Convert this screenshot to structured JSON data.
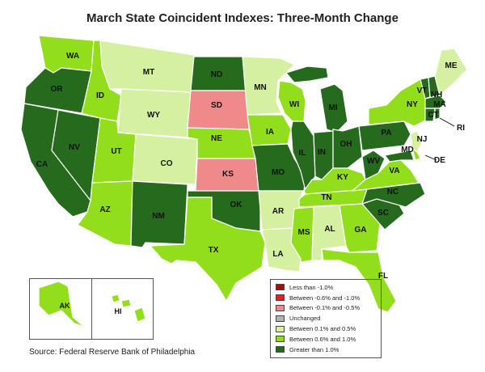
{
  "title": "March State Coincident Indexes: Three-Month Change",
  "source": "Source: Federal Reserve Bank of Philadelphia",
  "colors": {
    "lt_neg1": "#a11010",
    "neg08_neg1": "#ee1c1c",
    "neg01_neg05": "#f08a8a",
    "unchanged": "#b4b4b4",
    "p01_p05": "#d4f0a0",
    "p06_p1": "#92de1c",
    "gt1": "#266b1d"
  },
  "legend": [
    {
      "key": "lt_neg1",
      "label": "Less than -1.0%"
    },
    {
      "key": "neg08_neg1",
      "label": "Between -0.6% and -1.0%"
    },
    {
      "key": "neg01_neg05",
      "label": "Between -0.1% and -0.5%"
    },
    {
      "key": "unchanged",
      "label": "Unchanged"
    },
    {
      "key": "p01_p05",
      "label": "Between 0.1% and 0.5%"
    },
    {
      "key": "p06_p1",
      "label": "Between 0.6% and 1.0%"
    },
    {
      "key": "gt1",
      "label": "Greater than 1.0%"
    }
  ],
  "states": [
    {
      "abbr": "WA",
      "category": "p06_p1"
    },
    {
      "abbr": "OR",
      "category": "gt1"
    },
    {
      "abbr": "CA",
      "category": "gt1"
    },
    {
      "abbr": "NV",
      "category": "gt1"
    },
    {
      "abbr": "ID",
      "category": "p06_p1"
    },
    {
      "abbr": "MT",
      "category": "p01_p05"
    },
    {
      "abbr": "WY",
      "category": "p01_p05"
    },
    {
      "abbr": "UT",
      "category": "p06_p1"
    },
    {
      "abbr": "AZ",
      "category": "p06_p1"
    },
    {
      "abbr": "CO",
      "category": "p01_p05"
    },
    {
      "abbr": "NM",
      "category": "gt1"
    },
    {
      "abbr": "ND",
      "category": "gt1"
    },
    {
      "abbr": "SD",
      "category": "neg01_neg05"
    },
    {
      "abbr": "NE",
      "category": "p06_p1"
    },
    {
      "abbr": "KS",
      "category": "neg01_neg05"
    },
    {
      "abbr": "OK",
      "category": "gt1"
    },
    {
      "abbr": "TX",
      "category": "p06_p1"
    },
    {
      "abbr": "MN",
      "category": "p01_p05"
    },
    {
      "abbr": "IA",
      "category": "p06_p1"
    },
    {
      "abbr": "MO",
      "category": "gt1"
    },
    {
      "abbr": "AR",
      "category": "p01_p05"
    },
    {
      "abbr": "LA",
      "category": "p01_p05"
    },
    {
      "abbr": "WI",
      "category": "p06_p1"
    },
    {
      "abbr": "IL",
      "category": "gt1"
    },
    {
      "abbr": "MI",
      "category": "gt1"
    },
    {
      "abbr": "IN",
      "category": "gt1"
    },
    {
      "abbr": "OH",
      "category": "gt1"
    },
    {
      "abbr": "KY",
      "category": "p06_p1"
    },
    {
      "abbr": "TN",
      "category": "p06_p1"
    },
    {
      "abbr": "MS",
      "category": "p06_p1"
    },
    {
      "abbr": "AL",
      "category": "p01_p05"
    },
    {
      "abbr": "GA",
      "category": "p06_p1"
    },
    {
      "abbr": "FL",
      "category": "p06_p1"
    },
    {
      "abbr": "SC",
      "category": "gt1"
    },
    {
      "abbr": "NC",
      "category": "gt1"
    },
    {
      "abbr": "VA",
      "category": "p06_p1"
    },
    {
      "abbr": "WV",
      "category": "gt1"
    },
    {
      "abbr": "PA",
      "category": "gt1"
    },
    {
      "abbr": "NY",
      "category": "p06_p1"
    },
    {
      "abbr": "VT",
      "category": "gt1"
    },
    {
      "abbr": "NH",
      "category": "gt1"
    },
    {
      "abbr": "ME",
      "category": "p01_p05"
    },
    {
      "abbr": "MA",
      "category": "gt1"
    },
    {
      "abbr": "CT",
      "category": "gt1"
    },
    {
      "abbr": "RI",
      "category": "gt1"
    },
    {
      "abbr": "NJ",
      "category": "p01_p05"
    },
    {
      "abbr": "DE",
      "category": "p06_p1"
    },
    {
      "abbr": "MD",
      "category": "gt1"
    },
    {
      "abbr": "AK",
      "category": "p06_p1"
    },
    {
      "abbr": "HI",
      "category": "p06_p1"
    }
  ]
}
